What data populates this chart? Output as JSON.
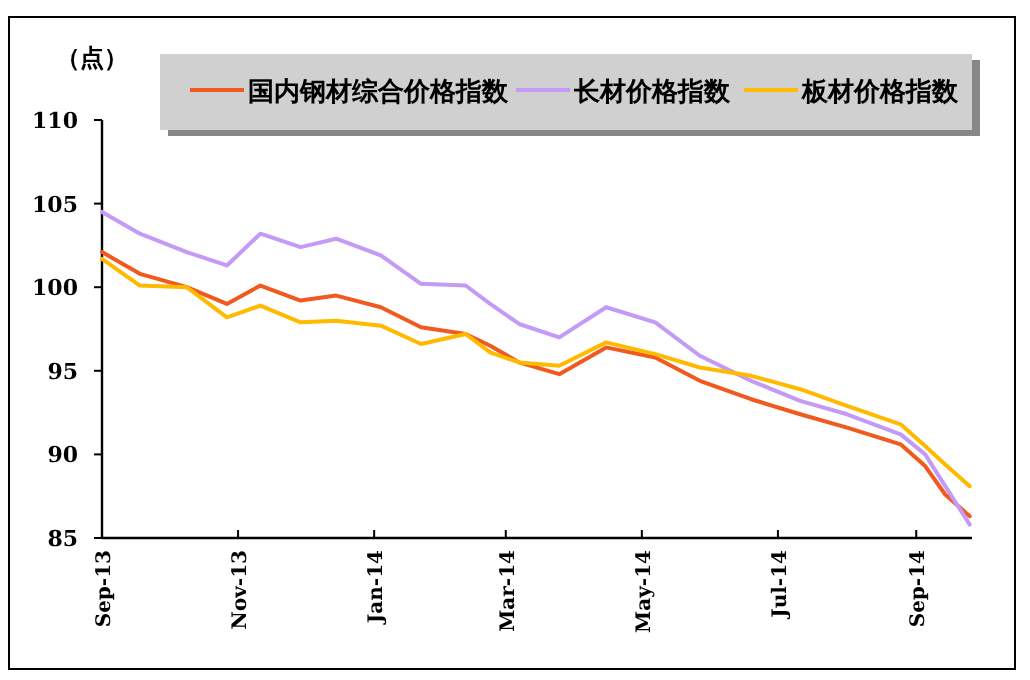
{
  "chart_data": {
    "type": "line",
    "ylabel": "（点）",
    "legend": "top",
    "grid": false,
    "marker": "none",
    "line_style": "solid",
    "x": [
      "2013-09-01",
      "2013-09-18",
      "2013-10-09",
      "2013-10-27",
      "2013-11-11",
      "2013-11-29",
      "2013-12-15",
      "2014-01-04",
      "2014-01-22",
      "2014-02-11",
      "2014-02-22",
      "2014-03-07",
      "2014-03-25",
      "2014-04-15",
      "2014-05-07",
      "2014-05-27",
      "2014-06-19",
      "2014-07-11",
      "2014-08-01",
      "2014-08-25",
      "2014-09-05",
      "2014-09-14",
      "2014-09-25"
    ],
    "xlim": [
      "2013-09-01",
      "2014-09-26"
    ],
    "xticks": [
      {
        "value": "2013-09-01",
        "label": "Sep-13"
      },
      {
        "value": "2013-11-01",
        "label": "Nov-13"
      },
      {
        "value": "2014-01-01",
        "label": "Jan-14"
      },
      {
        "value": "2014-03-01",
        "label": "Mar-14"
      },
      {
        "value": "2014-05-01",
        "label": "May-14"
      },
      {
        "value": "2014-07-01",
        "label": "Jul-14"
      },
      {
        "value": "2014-09-01",
        "label": "Sep-14"
      }
    ],
    "ylim": [
      85,
      110
    ],
    "yticks": [
      85,
      90,
      95,
      100,
      105,
      110
    ],
    "series": [
      {
        "name": "国内钢材综合价格指数",
        "color": "#f05a1e",
        "values": [
          102.1,
          100.8,
          100.0,
          99.0,
          100.1,
          99.2,
          99.5,
          98.8,
          97.6,
          97.2,
          96.5,
          95.5,
          94.8,
          96.4,
          95.8,
          94.4,
          93.3,
          92.4,
          91.6,
          90.6,
          89.3,
          87.6,
          86.3
        ]
      },
      {
        "name": "长材价格指数",
        "color": "#c39af5",
        "values": [
          104.5,
          103.2,
          102.1,
          101.3,
          103.2,
          102.4,
          102.9,
          101.9,
          100.2,
          100.1,
          99.0,
          97.8,
          97.0,
          98.8,
          97.9,
          95.9,
          94.4,
          93.2,
          92.4,
          91.2,
          90.0,
          88.1,
          85.8
        ]
      },
      {
        "name": "板材价格指数",
        "color": "#ffba00",
        "values": [
          101.7,
          100.1,
          100.0,
          98.2,
          98.9,
          97.9,
          98.0,
          97.7,
          96.6,
          97.2,
          96.1,
          95.5,
          95.3,
          96.7,
          96.0,
          95.2,
          94.7,
          93.9,
          92.9,
          91.8,
          90.5,
          89.4,
          88.1
        ]
      }
    ]
  }
}
